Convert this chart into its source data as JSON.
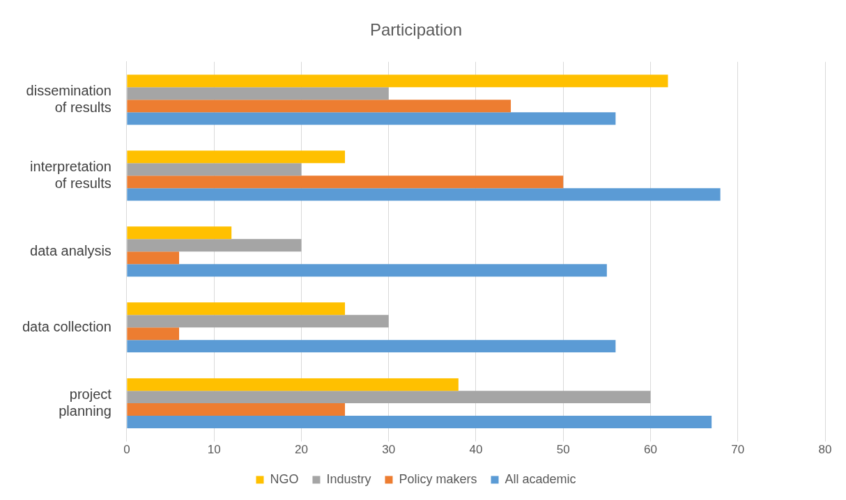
{
  "chart_data": {
    "type": "bar",
    "orientation": "horizontal",
    "title": "Participation",
    "categories": [
      "dissemination of results",
      "interpretation of results",
      "data analysis",
      "data collection",
      "project planning"
    ],
    "series": [
      {
        "name": "NGO",
        "color": "#ffc000",
        "values": [
          62,
          25,
          12,
          25,
          38
        ]
      },
      {
        "name": "Industry",
        "color": "#a5a5a5",
        "values": [
          30,
          20,
          20,
          30,
          60
        ]
      },
      {
        "name": "Policy makers",
        "color": "#ed7d31",
        "values": [
          44,
          50,
          6,
          6,
          25
        ]
      },
      {
        "name": "All academic",
        "color": "#5b9bd5",
        "values": [
          56,
          68,
          55,
          56,
          67
        ]
      }
    ],
    "xlim": [
      0,
      80
    ],
    "xticks": [
      0,
      10,
      20,
      30,
      40,
      50,
      60,
      70,
      80
    ],
    "grid": "x",
    "legend": "bottom"
  }
}
